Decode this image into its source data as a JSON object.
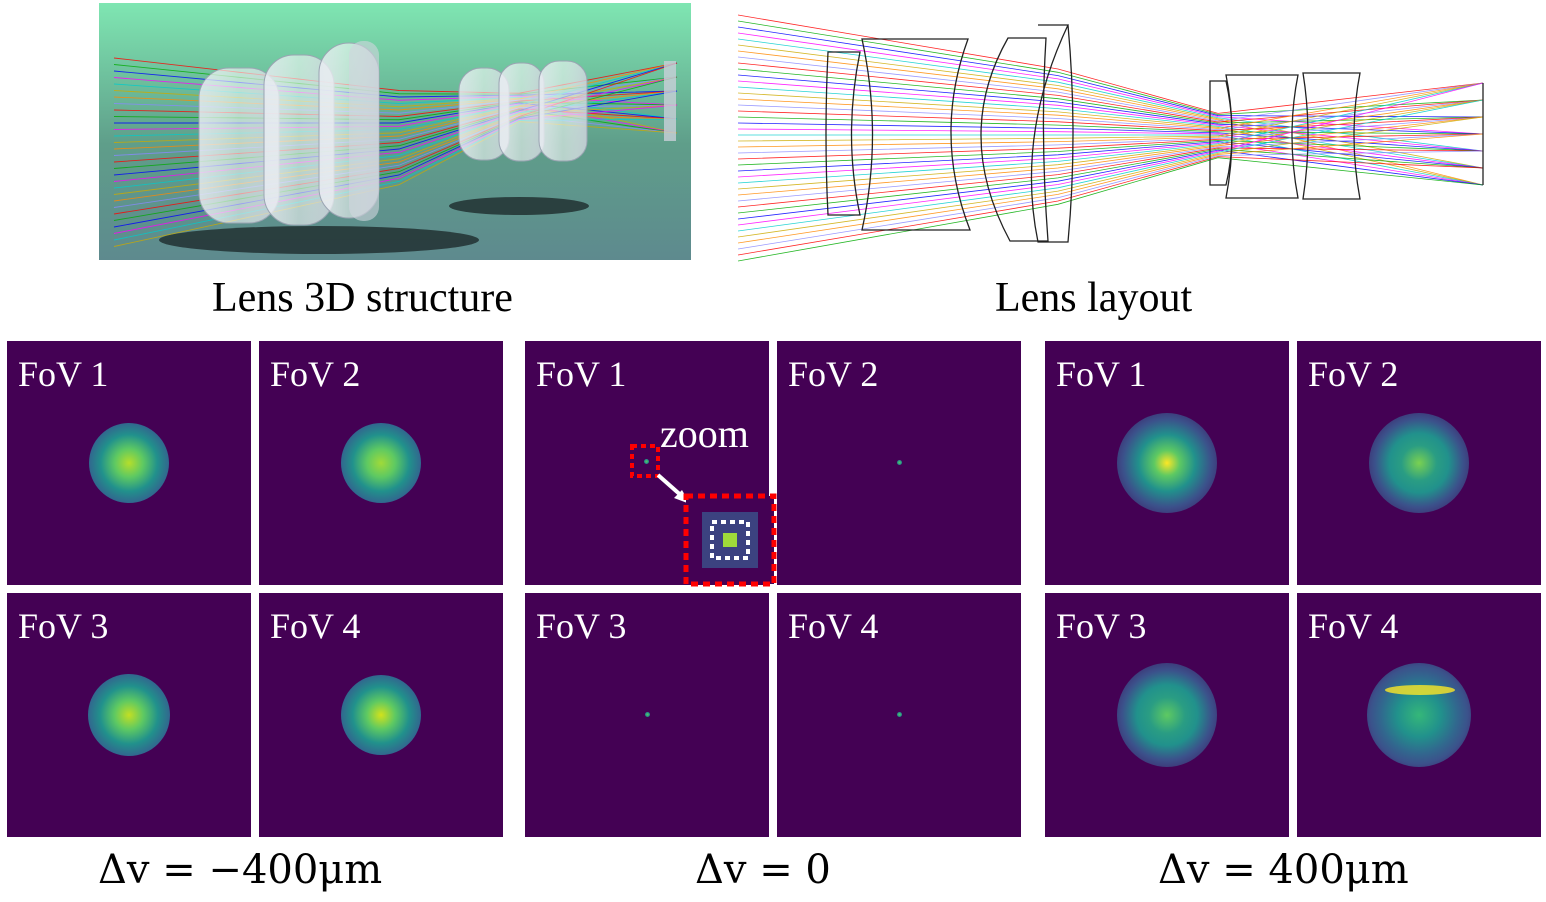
{
  "top": {
    "left_caption": "Lens 3D structure",
    "right_caption": "Lens layout"
  },
  "groups": [
    {
      "label": "Δv = −400μm",
      "panels": [
        {
          "label": "FoV 1",
          "spot": "blur"
        },
        {
          "label": "FoV 2",
          "spot": "blur"
        },
        {
          "label": "FoV 3",
          "spot": "blur"
        },
        {
          "label": "FoV 4",
          "spot": "blur"
        }
      ]
    },
    {
      "label": "Δv = 0",
      "panels": [
        {
          "label": "FoV 1",
          "spot": "point"
        },
        {
          "label": "FoV 2",
          "spot": "point"
        },
        {
          "label": "FoV 3",
          "spot": "point"
        },
        {
          "label": "FoV 4",
          "spot": "point"
        }
      ],
      "zoom_label": "zoom"
    },
    {
      "label": "Δv = 400μm",
      "panels": [
        {
          "label": "FoV 1",
          "spot": "ring"
        },
        {
          "label": "FoV 2",
          "spot": "ring"
        },
        {
          "label": "FoV 3",
          "spot": "ring"
        },
        {
          "label": "FoV 4",
          "spot": "ring"
        }
      ]
    }
  ],
  "colors": {
    "psf_background": "#440154",
    "zoom_box": "#ff0000",
    "ray_colors": [
      "#ff0000",
      "#00aa00",
      "#0000ff",
      "#ff00ff",
      "#00cccc",
      "#ccaa00",
      "#ff8800",
      "#8888ff"
    ]
  }
}
